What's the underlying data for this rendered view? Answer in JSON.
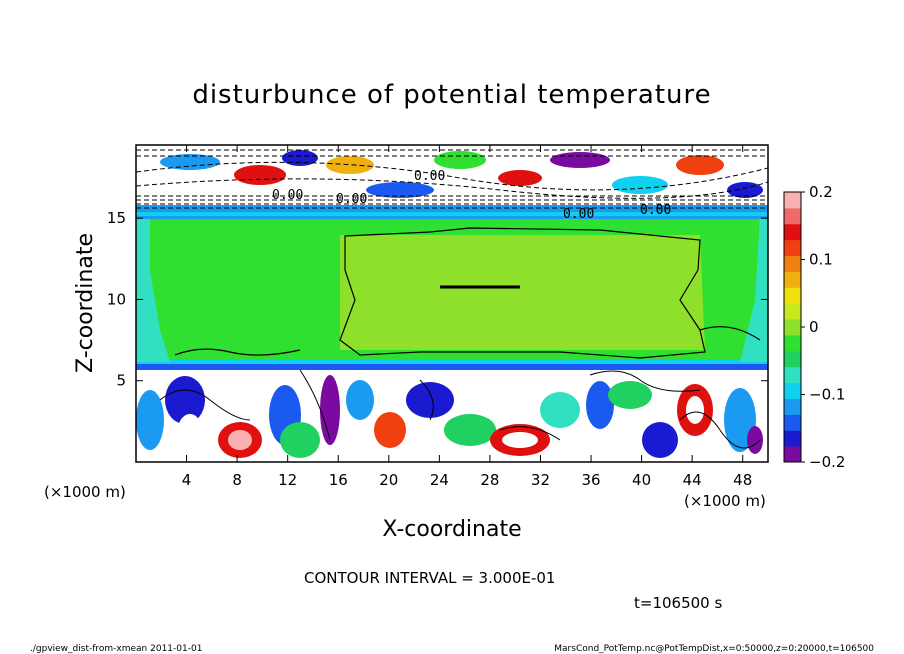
{
  "chart_data": {
    "type": "heatmap",
    "title": "disturbunce of potential temperature",
    "xlabel": "X-coordinate",
    "ylabel": "Z-coordinate",
    "x_unit": "(×1000 m)",
    "y_unit": "(×1000 m)",
    "xlim": [
      0,
      50
    ],
    "ylim": [
      0,
      19.5
    ],
    "x_ticks": [
      4,
      8,
      12,
      16,
      20,
      24,
      28,
      32,
      36,
      40,
      44,
      48
    ],
    "y_ticks": [
      5,
      10,
      15
    ],
    "colorbar": {
      "min": -0.2,
      "max": 0.2,
      "ticks": [
        0.2,
        0.1,
        0,
        -0.1,
        -0.2
      ],
      "tick_labels": [
        "0.2",
        "0.1",
        "0",
        "−0.1",
        "−0.2"
      ],
      "colors": [
        "#7a0aa0",
        "#1a1ad0",
        "#1a5af0",
        "#1a9af0",
        "#10d0f0",
        "#30e0c0",
        "#20d060",
        "#30e030",
        "#8ee02a",
        "#c8e820",
        "#f0e010",
        "#f0b010",
        "#f08010",
        "#f04010",
        "#e01010",
        "#f06a6a",
        "#f8b0b0"
      ]
    },
    "contour_interval": "CONTOUR INTERVAL = 3.000E-01",
    "contour_labels": [
      "0.00",
      "0.00",
      "0.00",
      "0.00",
      "0.00"
    ],
    "time_label": "t=106500 s"
  },
  "footer": {
    "left": "./gpview_dist-from-xmean  2011-01-01",
    "right": "MarsCond_PotTemp.nc@PotTempDist,x=0:50000,z=0:20000,t=106500"
  }
}
